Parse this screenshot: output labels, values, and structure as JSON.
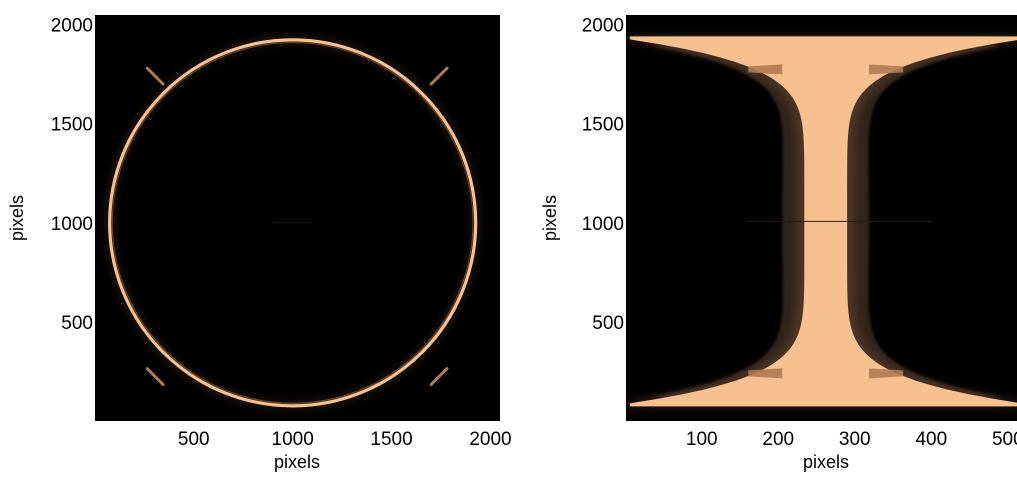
{
  "colors": {
    "background": "#000000",
    "image_bright": "#f7c08f",
    "image_mid": "#b07a52",
    "image_dim": "#3d2a1d",
    "text": "#000000"
  },
  "chart_data": [
    {
      "type": "heatmap",
      "title": "",
      "xlabel": "pixels",
      "ylabel": "pixels",
      "xlim": [
        1,
        2048
      ],
      "ylim": [
        1,
        2048
      ],
      "xticks": [
        500,
        1000,
        1500,
        2000
      ],
      "yticks": [
        500,
        1000,
        1500,
        2000
      ],
      "xtick_labels": [
        "500",
        "1000",
        "1500",
        "2000"
      ],
      "ytick_labels": [
        "500",
        "1000",
        "1500",
        "2000"
      ],
      "grid": false,
      "colormap": "copper",
      "content": {
        "ring": {
          "center": [
            1000,
            1000
          ],
          "radius": 925
        },
        "corner_marks": [
          {
            "from": [
              1780,
              1780
            ],
            "to": [
              1700,
              1700
            ]
          },
          {
            "from": [
              265,
              1780
            ],
            "to": [
              345,
              1700
            ]
          },
          {
            "from": [
              265,
              265
            ],
            "to": [
              345,
              185
            ]
          },
          {
            "from": [
              1780,
              265
            ],
            "to": [
              1700,
              185
            ]
          }
        ]
      }
    },
    {
      "type": "heatmap",
      "title": "",
      "xlabel": "pixels",
      "ylabel": "pixels",
      "xlim": [
        1,
        512
      ],
      "ylim": [
        1,
        2048
      ],
      "xticks": [
        100,
        200,
        300,
        400,
        500
      ],
      "yticks": [
        500,
        1000,
        1500,
        2000
      ],
      "xtick_labels": [
        "100",
        "200",
        "300",
        "400",
        "500"
      ],
      "ytick_labels": [
        "500",
        "1000",
        "1500",
        "2000"
      ],
      "grid": false,
      "colormap": "copper",
      "content": {
        "center_column": 262,
        "top_edge_row": 1925,
        "bottom_edge_row": 90,
        "waist_half_width": 28,
        "cap_half_width": 256
      }
    }
  ]
}
